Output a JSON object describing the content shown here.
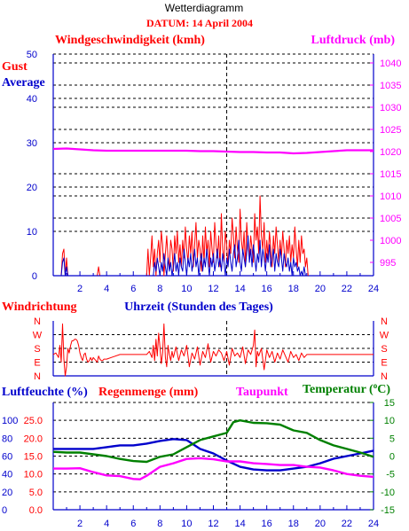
{
  "header": {
    "title": "Wetterdiagramm",
    "date": "DATUM: 14 April 2004"
  },
  "colors": {
    "red": "#ff0000",
    "blue": "#0000cc",
    "magenta": "#ff00ff",
    "green": "#008000",
    "grid": "#000000"
  },
  "chart_data": [
    {
      "id": "wind",
      "type": "line",
      "title": "Windgeschwindigkeit (kmh)",
      "title_right": "Luftdruck (mb)",
      "legend": [
        "Gust",
        "Average"
      ],
      "xlim": [
        0,
        24
      ],
      "x_ticks": [
        2,
        4,
        6,
        8,
        10,
        12,
        14,
        16,
        18,
        20,
        22,
        24
      ],
      "xlabel": "Uhrzeit (Stunden des Tages)",
      "ylim": [
        0,
        50
      ],
      "y_ticks": [
        0,
        10,
        20,
        30,
        40,
        50
      ],
      "y2lim": [
        992,
        1042
      ],
      "y2_ticks": [
        995,
        1000,
        1005,
        1010,
        1015,
        1020,
        1025,
        1030,
        1035,
        1040
      ],
      "series": [
        {
          "name": "Gust",
          "color": "#ff0000",
          "x": [
            0.6,
            0.7,
            0.8,
            0.9,
            1.0,
            1.1,
            1.2,
            3.3,
            3.4,
            3.5,
            7.0,
            7.1,
            7.2,
            7.3,
            7.4,
            7.5,
            7.6,
            7.7,
            7.8,
            7.9,
            8.0,
            8.1,
            8.2,
            8.3,
            8.4,
            8.5,
            8.6,
            8.7,
            8.8,
            8.9,
            9.0,
            9.1,
            9.2,
            9.3,
            9.4,
            9.5,
            9.6,
            9.7,
            9.8,
            9.9,
            10.0,
            10.1,
            10.2,
            10.3,
            10.4,
            10.5,
            10.6,
            10.7,
            10.8,
            10.9,
            11.0,
            11.1,
            11.2,
            11.3,
            11.4,
            11.5,
            11.6,
            11.7,
            11.8,
            11.9,
            12.0,
            12.1,
            12.2,
            12.3,
            12.4,
            12.5,
            12.6,
            12.7,
            12.8,
            12.9,
            13.0,
            13.1,
            13.2,
            13.3,
            13.4,
            13.5,
            13.6,
            13.7,
            13.8,
            13.9,
            14.0,
            14.1,
            14.2,
            14.3,
            14.4,
            14.5,
            14.6,
            14.7,
            14.8,
            14.9,
            15.0,
            15.1,
            15.2,
            15.3,
            15.4,
            15.5,
            15.6,
            15.7,
            15.8,
            15.9,
            16.0,
            16.1,
            16.2,
            16.3,
            16.4,
            16.5,
            16.6,
            16.7,
            16.8,
            16.9,
            17.0,
            17.1,
            17.2,
            17.3,
            17.4,
            17.5,
            17.6,
            17.7,
            17.8,
            17.9,
            18.0,
            18.1,
            18.2,
            18.3,
            18.4,
            18.5,
            18.6,
            18.7,
            18.8,
            18.9,
            19.0,
            19.1
          ],
          "y": [
            0,
            5,
            6,
            0,
            4,
            0,
            0,
            0,
            2,
            0,
            0,
            6,
            0,
            4,
            9,
            2,
            6,
            0,
            5,
            8,
            3,
            10,
            7,
            0,
            5,
            9,
            4,
            2,
            8,
            6,
            1,
            9,
            5,
            10,
            3,
            7,
            2,
            8,
            4,
            11,
            6,
            3,
            9,
            5,
            10,
            2,
            7,
            12,
            4,
            8,
            6,
            1,
            9,
            3,
            11,
            5,
            8,
            2,
            10,
            6,
            3,
            12,
            7,
            4,
            9,
            2,
            14,
            6,
            3,
            10,
            7,
            2,
            8,
            5,
            13,
            9,
            4,
            11,
            6,
            3,
            15,
            8,
            5,
            10,
            2,
            12,
            7,
            4,
            9,
            6,
            3,
            14,
            8,
            11,
            5,
            18,
            9,
            6,
            12,
            3,
            8,
            4,
            10,
            6,
            2,
            9,
            5,
            11,
            7,
            3,
            8,
            4,
            10,
            6,
            2,
            8,
            5,
            9,
            3,
            7,
            4,
            11,
            6,
            2,
            8,
            3,
            9,
            5,
            6,
            2,
            4,
            0
          ],
          "name_shown": true
        },
        {
          "name": "Average",
          "color": "#0000cc",
          "x": [
            0.6,
            0.7,
            0.8,
            0.9,
            1.0,
            1.1,
            7.5,
            7.6,
            7.7,
            7.8,
            7.9,
            8.0,
            8.1,
            8.2,
            8.3,
            8.4,
            8.5,
            8.6,
            8.7,
            8.8,
            8.9,
            9.0,
            9.1,
            9.2,
            9.3,
            9.4,
            9.5,
            9.6,
            9.7,
            9.8,
            9.9,
            10.0,
            10.1,
            10.2,
            10.3,
            10.4,
            10.5,
            10.6,
            10.7,
            10.8,
            10.9,
            11.0,
            11.1,
            11.2,
            11.3,
            11.4,
            11.5,
            11.6,
            11.7,
            11.8,
            11.9,
            12.0,
            12.1,
            12.2,
            12.3,
            12.4,
            12.5,
            12.6,
            12.7,
            12.8,
            12.9,
            13.0,
            13.1,
            13.2,
            13.3,
            13.4,
            13.5,
            13.6,
            13.7,
            13.8,
            13.9,
            14.0,
            14.1,
            14.2,
            14.3,
            14.4,
            14.5,
            14.6,
            14.7,
            14.8,
            14.9,
            15.0,
            15.1,
            15.2,
            15.3,
            15.4,
            15.5,
            15.6,
            15.7,
            15.8,
            15.9,
            16.0,
            16.1,
            16.2,
            16.3,
            16.4,
            16.5,
            16.6,
            16.7,
            16.8,
            16.9,
            17.0,
            17.1,
            17.2,
            17.3,
            17.4,
            17.5,
            17.6,
            17.7,
            17.8,
            17.9,
            18.0,
            18.1,
            18.2,
            18.3,
            18.4,
            18.5,
            18.6,
            18.7,
            18.8,
            18.9,
            19.0
          ],
          "y": [
            0,
            3,
            4,
            0,
            2,
            0,
            0,
            3,
            1,
            4,
            2,
            0,
            3,
            1,
            5,
            2,
            0,
            4,
            1,
            3,
            0,
            2,
            5,
            1,
            3,
            0,
            4,
            2,
            1,
            6,
            3,
            0,
            4,
            2,
            5,
            1,
            3,
            6,
            2,
            4,
            0,
            3,
            5,
            1,
            4,
            2,
            6,
            3,
            0,
            4,
            2,
            5,
            1,
            3,
            6,
            2,
            4,
            1,
            5,
            3,
            0,
            4,
            2,
            6,
            3,
            1,
            5,
            7,
            2,
            4,
            8,
            3,
            1,
            6,
            4,
            2,
            5,
            9,
            3,
            6,
            2,
            7,
            4,
            1,
            5,
            3,
            8,
            2,
            6,
            4,
            1,
            5,
            3,
            7,
            2,
            4,
            6,
            1,
            5,
            3,
            2,
            6,
            4,
            1,
            5,
            3,
            2,
            4,
            1,
            3,
            0,
            4,
            2,
            3,
            1,
            2,
            0,
            1,
            0,
            2,
            0,
            0
          ],
          "name_shown": true
        },
        {
          "name": "Luftdruck",
          "axis": "right",
          "color": "#ff00ff",
          "x": [
            0,
            1,
            2,
            3,
            4,
            5,
            6,
            7,
            8,
            9,
            10,
            11,
            12,
            13,
            14,
            15,
            16,
            17,
            18,
            19,
            20,
            21,
            22,
            23,
            24
          ],
          "y": [
            1020.6,
            1020.7,
            1020.5,
            1020.3,
            1020.2,
            1020.2,
            1020.2,
            1020.2,
            1020.2,
            1020.2,
            1020.2,
            1020.1,
            1020.1,
            1020.0,
            1019.9,
            1019.9,
            1019.8,
            1019.8,
            1019.6,
            1019.7,
            1019.9,
            1020.1,
            1020.3,
            1020.3,
            1020.3
          ],
          "name_shown": false
        }
      ]
    },
    {
      "id": "wind-direction",
      "type": "line",
      "title": "Windrichtung",
      "xlim": [
        0,
        24
      ],
      "y_ticks": [
        "N",
        "W",
        "S",
        "E",
        "N"
      ],
      "y_tick_values": [
        360,
        270,
        180,
        90,
        0
      ],
      "ylim": [
        0,
        360
      ],
      "series": [
        {
          "name": "Windrichtung",
          "color": "#ff0000",
          "x": [
            0,
            0.2,
            0.4,
            0.5,
            0.6,
            0.7,
            0.8,
            0.9,
            1.0,
            1.1,
            1.2,
            1.3,
            1.4,
            1.5,
            1.6,
            1.7,
            1.8,
            1.9,
            2.0,
            2.1,
            2.2,
            2.3,
            2.4,
            2.5,
            2.6,
            2.7,
            2.8,
            2.9,
            3.0,
            3.1,
            3.2,
            3.3,
            3.4,
            3.5,
            3.6,
            3.7,
            3.8,
            4.0,
            5.0,
            6.0,
            7.0,
            7.2,
            7.4,
            7.5,
            7.6,
            7.7,
            7.8,
            7.9,
            8.0,
            8.1,
            8.2,
            8.3,
            8.4,
            8.5,
            8.6,
            8.7,
            8.8,
            8.9,
            9.0,
            9.2,
            9.4,
            9.6,
            9.8,
            10.0,
            10.2,
            10.4,
            10.6,
            10.8,
            11.0,
            11.2,
            11.4,
            11.6,
            11.8,
            12.0,
            12.2,
            12.4,
            12.6,
            12.8,
            13.0,
            13.2,
            13.4,
            13.6,
            13.8,
            14.0,
            14.2,
            14.4,
            14.6,
            14.8,
            15.0,
            15.1,
            15.2,
            15.3,
            15.4,
            15.6,
            15.8,
            16.0,
            16.2,
            16.4,
            16.6,
            16.8,
            17.0,
            17.2,
            17.4,
            17.6,
            17.8,
            18.0,
            18.2,
            18.4,
            18.6,
            18.8,
            19.0,
            19.2,
            20.0,
            22.0,
            24.0
          ],
          "y": [
            140,
            150,
            120,
            200,
            90,
            340,
            110,
            0,
            60,
            180,
            150,
            200,
            230,
            230,
            240,
            240,
            230,
            200,
            150,
            120,
            100,
            140,
            150,
            110,
            90,
            100,
            120,
            100,
            120,
            110,
            100,
            90,
            130,
            110,
            100,
            100,
            110,
            110,
            140,
            140,
            140,
            160,
            120,
            200,
            100,
            240,
            130,
            280,
            190,
            80,
            150,
            340,
            120,
            60,
            200,
            140,
            100,
            160,
            120,
            190,
            100,
            170,
            130,
            200,
            60,
            150,
            110,
            190,
            70,
            160,
            120,
            210,
            90,
            160,
            130,
            170,
            150,
            100,
            160,
            70,
            180,
            130,
            150,
            120,
            190,
            80,
            170,
            140,
            200,
            300,
            60,
            160,
            130,
            180,
            40,
            170,
            120,
            160,
            90,
            150,
            110,
            170,
            130,
            90,
            160,
            120,
            140,
            100,
            150,
            120,
            140,
            140,
            140,
            140,
            140
          ],
          "name_shown": false
        }
      ]
    },
    {
      "id": "humidity-temp",
      "type": "line",
      "title_left_1": "Luftfeuchte (%)",
      "title_left_2": "Regenmenge (mm)",
      "title_right_1": "Taupunkt",
      "title_right_2": "Temperatur (",
      "title_right_2_unit": "C)",
      "xlim": [
        0,
        24
      ],
      "x_ticks": [
        2,
        4,
        6,
        8,
        10,
        12,
        14,
        16,
        18,
        20,
        22,
        24
      ],
      "y_humidity_ticks": [
        0,
        20,
        40,
        60,
        80,
        100
      ],
      "y_rain_ticks": [
        "0.0",
        "5.0",
        "10.0",
        "15.0",
        "20.0",
        "25.0"
      ],
      "ylim_humidity": [
        0,
        120
      ],
      "y_temp_ticks": [
        -15,
        -10,
        -5,
        0,
        5,
        10,
        15
      ],
      "ylim_temp": [
        -15,
        15
      ],
      "series": [
        {
          "name": "Luftfeuchte",
          "axis": "humidity",
          "color": "#0000cc",
          "x": [
            0,
            1,
            2,
            3,
            4,
            5,
            6,
            7,
            8,
            9,
            10,
            11,
            12,
            13,
            14,
            15,
            16,
            17,
            18,
            19,
            20,
            21,
            22,
            23,
            24
          ],
          "y": [
            68,
            68,
            68,
            68,
            70,
            72,
            72,
            74,
            77,
            79,
            78,
            68,
            63,
            55,
            48,
            45,
            44,
            44,
            46,
            48,
            52,
            57,
            60,
            63,
            66
          ],
          "name_shown": false
        },
        {
          "name": "Taupunkt",
          "axis": "temp",
          "color": "#ff00ff",
          "x": [
            0,
            1,
            2,
            3,
            4,
            5,
            6,
            6.5,
            7,
            8,
            9,
            10,
            11,
            12,
            13,
            14,
            15,
            16,
            17,
            18,
            19,
            20,
            21,
            22,
            23,
            24
          ],
          "y": [
            -3.5,
            -3.5,
            -3.4,
            -4.5,
            -5.4,
            -5.6,
            -6.4,
            -6.5,
            -5.5,
            -3.0,
            -2.0,
            -0.8,
            -0.6,
            -0.9,
            -1.5,
            -1.5,
            -2.0,
            -2.2,
            -2.5,
            -2.5,
            -3.0,
            -3.2,
            -4.0,
            -5.0,
            -5.5,
            -5.8
          ],
          "name_shown": true
        },
        {
          "name": "Temperatur",
          "axis": "temp",
          "color": "#008000",
          "x": [
            0,
            1,
            2,
            3,
            4,
            5,
            6,
            7,
            8,
            9,
            10,
            11,
            12,
            13,
            13.5,
            14,
            15,
            16,
            17,
            18,
            19,
            20,
            21,
            22,
            23,
            24
          ],
          "y": [
            1.2,
            1.0,
            1.0,
            0.5,
            0.0,
            -0.8,
            -1.4,
            -1.6,
            -0.2,
            0.5,
            2.5,
            4.5,
            5.5,
            6.5,
            9.5,
            10.0,
            9.3,
            9.2,
            8.8,
            7.2,
            6.5,
            4.5,
            3.0,
            2.0,
            1.0,
            -0.2
          ],
          "name_shown": true
        }
      ]
    }
  ]
}
